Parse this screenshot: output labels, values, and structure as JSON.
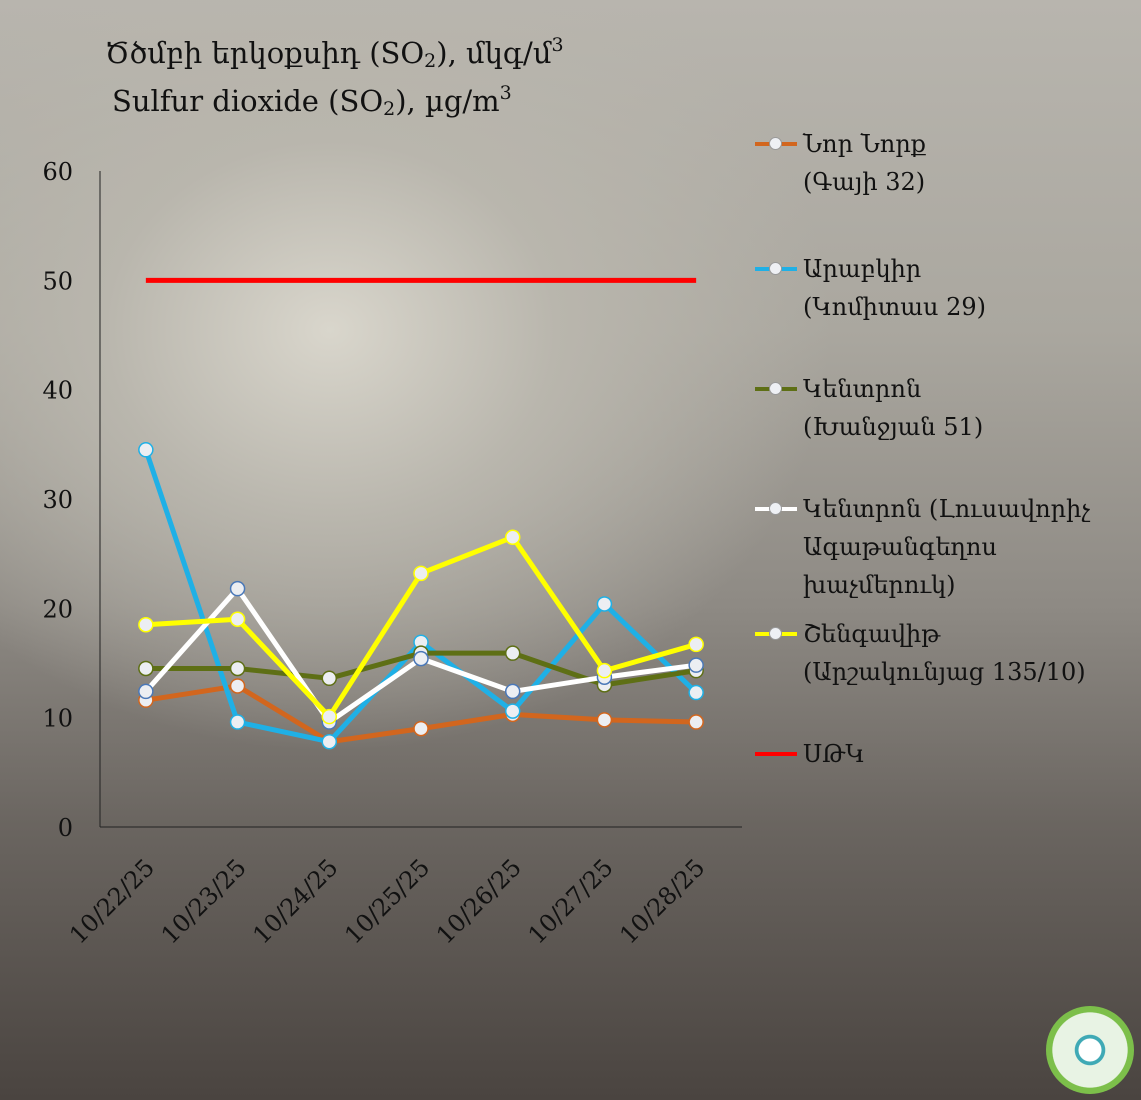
{
  "chart_data": {
    "type": "line",
    "title": {
      "hy_pre": "Ծծմբի երկօքսիդ (SO",
      "hy_sub": "2",
      "hy_mid": "), մկգ/մ",
      "hy_sup": "3",
      "en_pre": "Sulfur dioxide (SO",
      "en_sub": "2",
      "en_mid": "), µg/m",
      "en_sup": "3"
    },
    "categories": [
      "10/22/25",
      "10/23/25",
      "10/24/25",
      "10/25/25",
      "10/26/25",
      "10/27/25",
      "10/28/25"
    ],
    "ylim": [
      0,
      60
    ],
    "yticks": [
      0,
      10,
      20,
      30,
      40,
      50,
      60
    ],
    "grid": false,
    "legend_position": "right",
    "series": [
      {
        "name": "Նոր Նորք",
        "sub": [
          "(Գայի 32)"
        ],
        "color": "#d2661e",
        "values": [
          11.6,
          12.9,
          7.8,
          9.0,
          10.3,
          9.8,
          9.6
        ]
      },
      {
        "name": "Արաբկիր",
        "sub": [
          "(Կոմիտաս 29)"
        ],
        "color": "#1fb0e6",
        "values": [
          34.5,
          9.6,
          7.8,
          16.9,
          10.6,
          20.4,
          12.3
        ]
      },
      {
        "name": "Կենտրոն",
        "sub": [
          "(Խանջյան 51)"
        ],
        "color": "#5e6f15",
        "values": [
          14.5,
          14.5,
          13.6,
          15.9,
          15.9,
          13.0,
          14.3
        ]
      },
      {
        "name": "Կենտրոն (Լուսավորիչ",
        "sub": [
          "Ագաթանգեղոս",
          "խաչմերուկ)"
        ],
        "color": "#ffffff",
        "values": [
          12.4,
          21.8,
          9.6,
          15.4,
          12.4,
          13.7,
          14.8
        ]
      },
      {
        "name": "Շենգավիթ",
        "sub": [
          "(Արշակունյաց 135/10)"
        ],
        "color": "#ffff00",
        "values": [
          18.5,
          19.0,
          10.1,
          23.2,
          26.5,
          14.3,
          16.7
        ]
      }
    ],
    "threshold": {
      "name": "ՍԹԿ",
      "color": "#ff0000",
      "value": 50
    }
  }
}
